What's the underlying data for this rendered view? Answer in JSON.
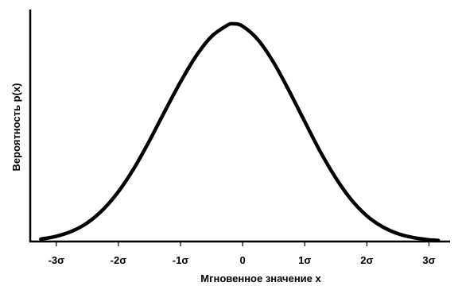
{
  "chart_data": {
    "type": "line",
    "xlabel": "Мгновенное значение x",
    "ylabel": "Вероятность p(x)",
    "x_ticks": [
      -3,
      -2,
      -1,
      0,
      1,
      2,
      3
    ],
    "x_tick_labels": [
      "-3σ",
      "-2σ",
      "-1σ",
      "0",
      "1σ",
      "2σ",
      "3σ"
    ],
    "xlim": [
      -3.42,
      3.34
    ],
    "ylim": [
      0,
      1.1
    ],
    "grid": false,
    "series": [
      {
        "x": [
          -3.25,
          -3.0,
          -2.75,
          -2.5,
          -2.25,
          -2.0,
          -1.75,
          -1.5,
          -1.25,
          -1.0,
          -0.75,
          -0.5,
          -0.25,
          -0.15,
          0.0,
          0.25,
          0.5,
          0.75,
          1.0,
          1.25,
          1.5,
          1.75,
          2.0,
          2.25,
          2.5,
          2.75,
          3.0,
          3.15
        ],
        "y": [
          0.011,
          0.024,
          0.047,
          0.086,
          0.146,
          0.229,
          0.336,
          0.463,
          0.6,
          0.733,
          0.852,
          0.942,
          0.993,
          1.0,
          0.989,
          0.926,
          0.822,
          0.691,
          0.551,
          0.413,
          0.292,
          0.192,
          0.118,
          0.068,
          0.036,
          0.018,
          0.008,
          0.005
        ],
        "color": "#000000"
      }
    ]
  }
}
